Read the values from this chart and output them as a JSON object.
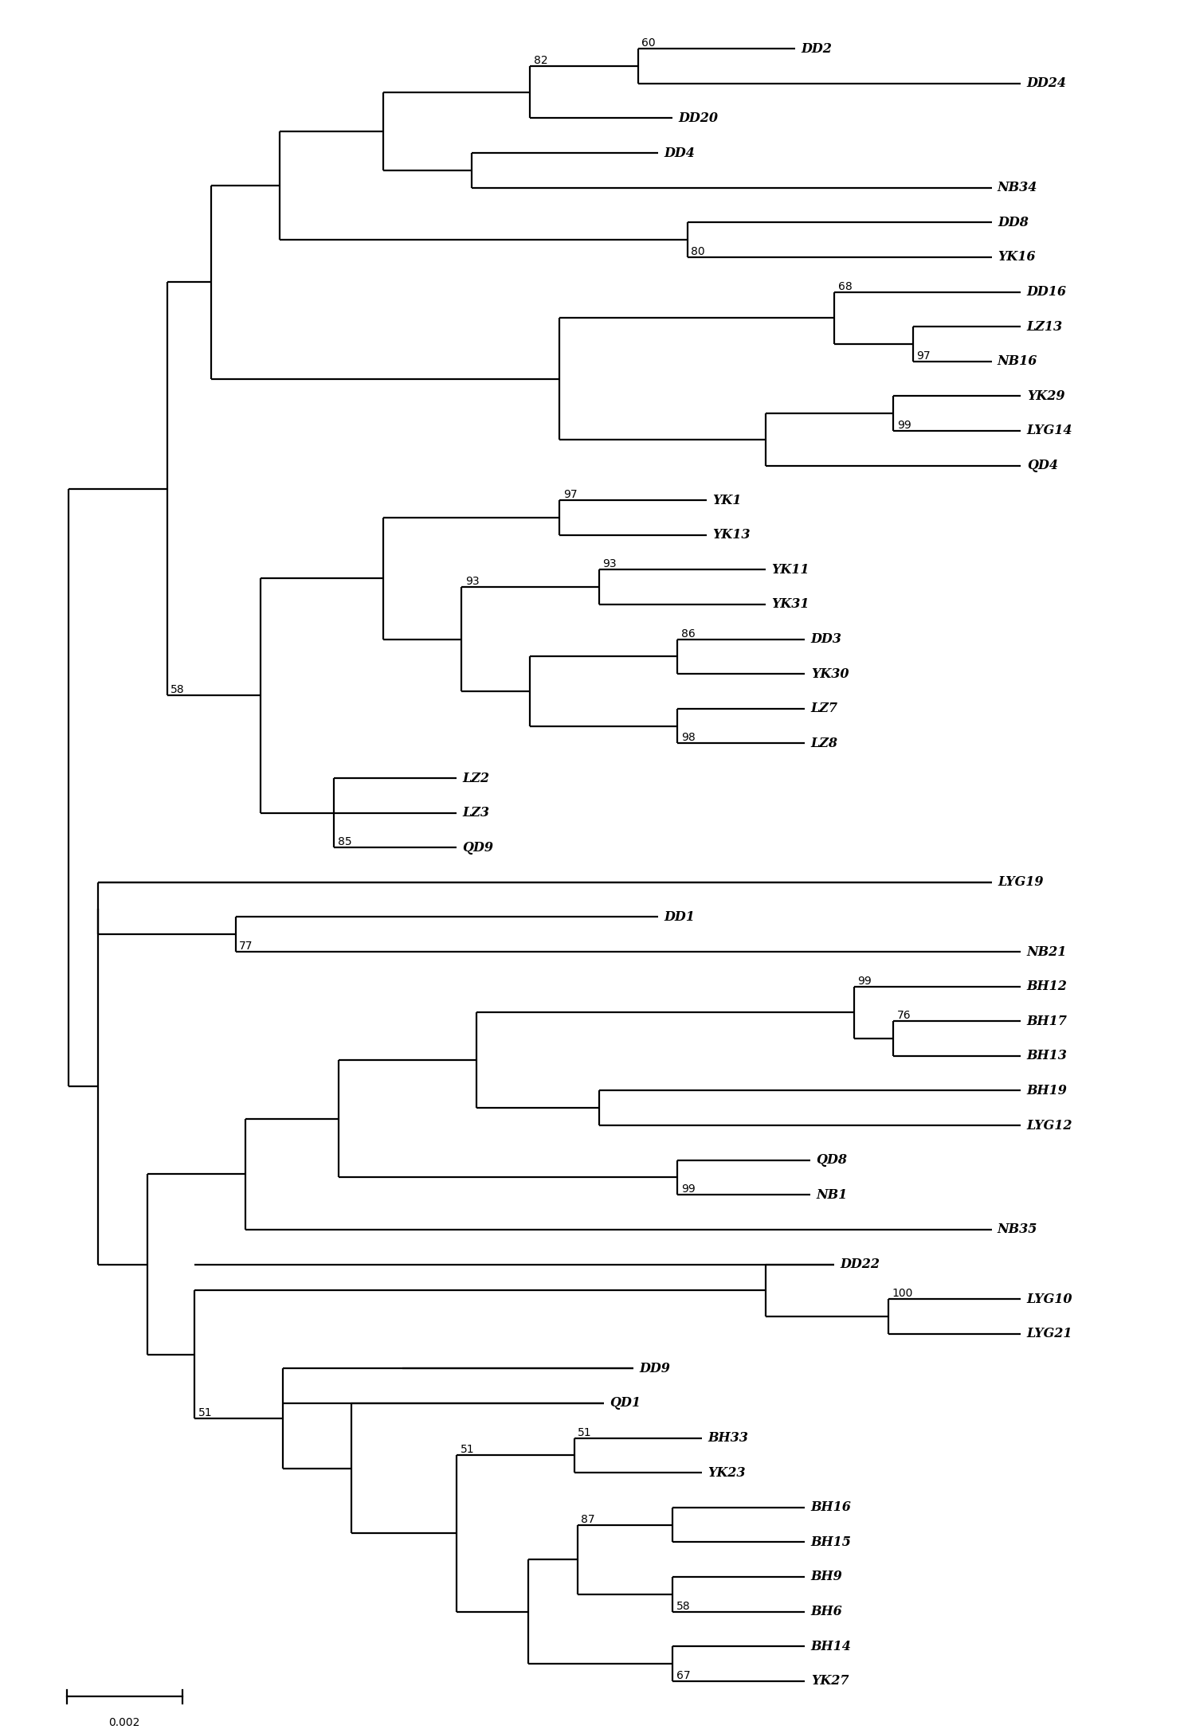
{
  "background": "#ffffff",
  "line_color": "#000000",
  "line_width": 1.6,
  "font_size": 10.5,
  "label_font_size": 11.5,
  "figsize": [
    14.81,
    21.76
  ],
  "dpi": 100,
  "taxa": [
    "DD2",
    "DD24",
    "DD20",
    "DD4",
    "NB34",
    "DD8",
    "YK16",
    "DD16",
    "LZ13",
    "NB16",
    "YK29",
    "LYG14",
    "QD4",
    "YK1",
    "YK13",
    "YK11",
    "YK31",
    "DD3",
    "YK30",
    "LZ7",
    "LZ8",
    "LZ2",
    "LZ3",
    "QD9",
    "LYG19",
    "DD1",
    "NB21",
    "BH12",
    "BH17",
    "BH13",
    "BH19",
    "LYG12",
    "QD8",
    "NB1",
    "NB35",
    "DD22",
    "LYG10",
    "LYG21",
    "DD9",
    "QD1",
    "BH33",
    "YK23",
    "BH16",
    "BH15",
    "BH9",
    "BH6",
    "BH14",
    "YK27"
  ]
}
